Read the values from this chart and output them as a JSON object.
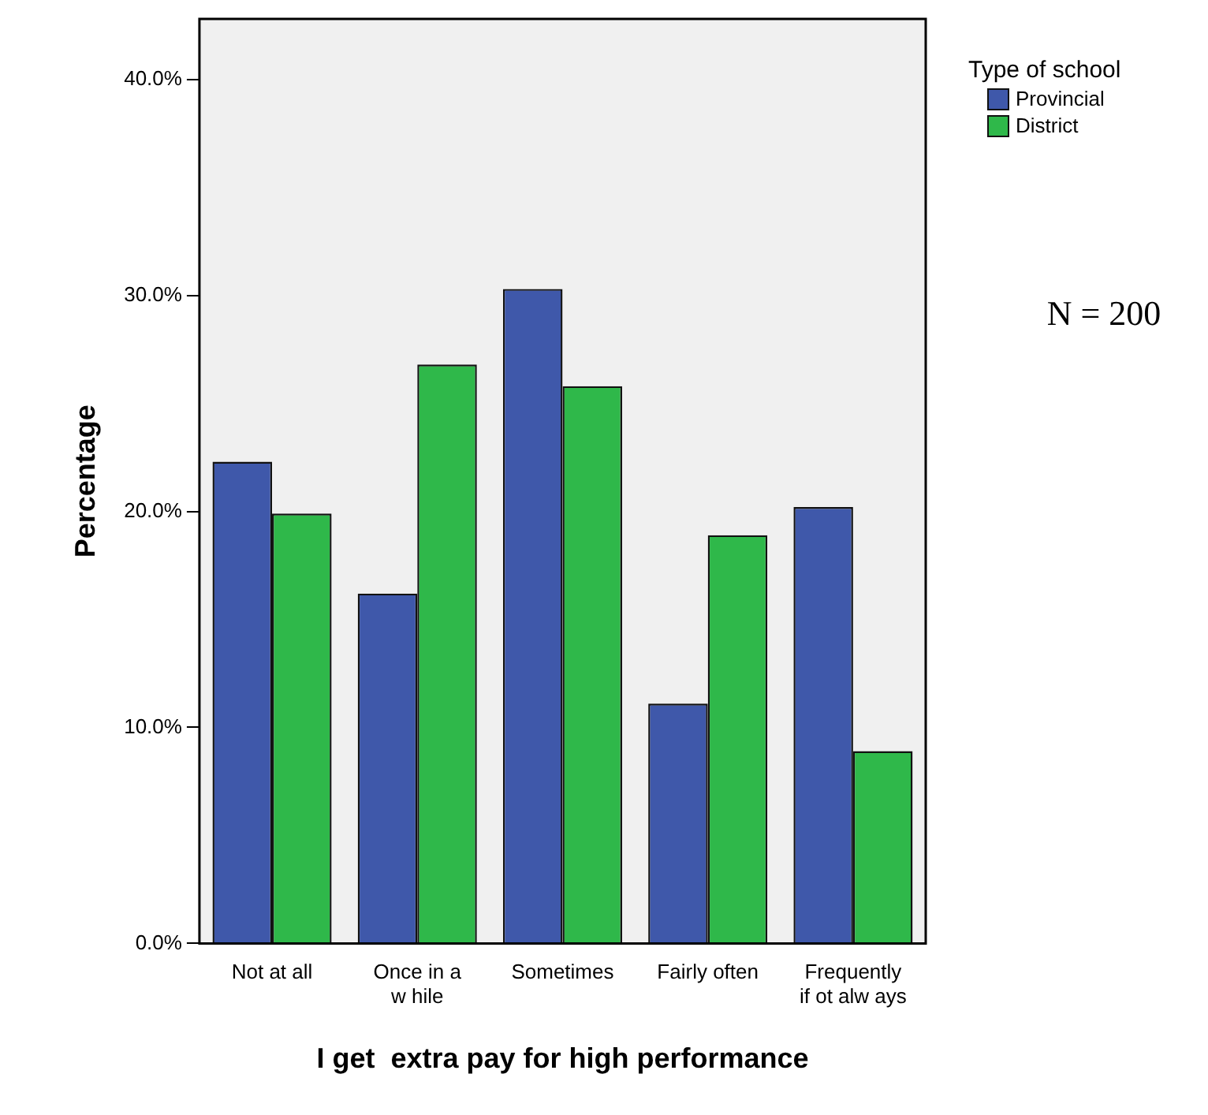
{
  "chart_data": {
    "type": "bar",
    "xlabel": "I get  extra pay for high performance",
    "ylabel": "Percentage",
    "legend_title": "Type of school",
    "legend": "top right",
    "categories": [
      "Not at all",
      "Once in a\nw hile",
      "Sometimes",
      "Fairly often",
      "Frequently\nif ot alw ays"
    ],
    "series": [
      {
        "name": "Provincial",
        "color": "#3f58aa",
        "values": [
          22.3,
          16.2,
          30.3,
          11.1,
          20.2
        ]
      },
      {
        "name": "District",
        "color": "#2fb84a",
        "values": [
          19.9,
          26.8,
          25.8,
          18.9,
          8.9
        ]
      }
    ],
    "ylim": [
      0,
      42.8
    ],
    "yticks": [
      {
        "value": 0,
        "label": "0.0%"
      },
      {
        "value": 10,
        "label": "10.0%"
      },
      {
        "value": 20,
        "label": "20.0%"
      },
      {
        "value": 30,
        "label": "30.0%"
      },
      {
        "value": 40,
        "label": "40.0%"
      }
    ],
    "grid": false,
    "annotations": [
      "N = 200"
    ]
  }
}
